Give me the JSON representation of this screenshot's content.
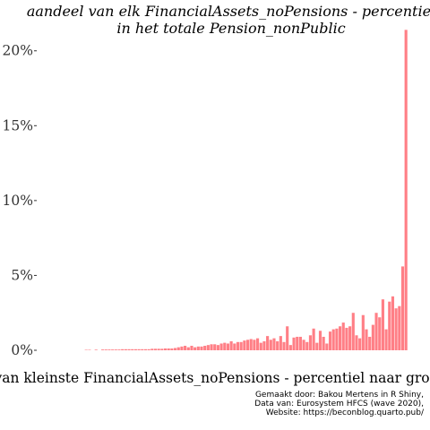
{
  "chart_data": {
    "type": "bar",
    "title_line1": "aandeel van elk FinancialAssets_noPensions - percentiel",
    "title_line2": "in het totale Pension_nonPublic",
    "xlabel": "van kleinste FinancialAssets_noPensions - percentiel naar grootste",
    "ylabel": "",
    "y_ticks": [
      {
        "value": 0,
        "label": "0%"
      },
      {
        "value": 5,
        "label": "5%"
      },
      {
        "value": 10,
        "label": "10%"
      },
      {
        "value": 15,
        "label": "15%"
      },
      {
        "value": 20,
        "label": "20%"
      }
    ],
    "ylim": [
      0,
      21.6
    ],
    "grid": false,
    "bar_color": "#ff7f86",
    "x": [
      1,
      2,
      3,
      4,
      5,
      6,
      7,
      8,
      9,
      10,
      11,
      12,
      13,
      14,
      15,
      16,
      17,
      18,
      19,
      20,
      21,
      22,
      23,
      24,
      25,
      26,
      27,
      28,
      29,
      30,
      31,
      32,
      33,
      34,
      35,
      36,
      37,
      38,
      39,
      40,
      41,
      42,
      43,
      44,
      45,
      46,
      47,
      48,
      49,
      50,
      51,
      52,
      53,
      54,
      55,
      56,
      57,
      58,
      59,
      60,
      61,
      62,
      63,
      64,
      65,
      66,
      67,
      68,
      69,
      70,
      71,
      72,
      73,
      74,
      75,
      76,
      77,
      78,
      79,
      80,
      81,
      82,
      83,
      84,
      85,
      86,
      87,
      88,
      89,
      90,
      91,
      92,
      93,
      94,
      95,
      96,
      97,
      98,
      99,
      100
    ],
    "values": [
      0,
      0,
      0.03,
      0.03,
      0,
      0.04,
      0,
      0.05,
      0.05,
      0.05,
      0.05,
      0.05,
      0.05,
      0.07,
      0.07,
      0.07,
      0.07,
      0.07,
      0.07,
      0.07,
      0.07,
      0.07,
      0.1,
      0.1,
      0.1,
      0.1,
      0.12,
      0.12,
      0.12,
      0.15,
      0.2,
      0.25,
      0.3,
      0.2,
      0.3,
      0.2,
      0.25,
      0.25,
      0.3,
      0.35,
      0.4,
      0.4,
      0.35,
      0.45,
      0.5,
      0.45,
      0.6,
      0.45,
      0.55,
      0.55,
      0.65,
      0.7,
      0.75,
      0.7,
      0.8,
      0.5,
      0.6,
      0.95,
      0.7,
      0.8,
      0.6,
      0.95,
      0.55,
      1.6,
      0.35,
      0.85,
      0.9,
      0.9,
      0.7,
      0.55,
      1.0,
      1.45,
      0.5,
      1.3,
      0.9,
      0.45,
      1.25,
      1.4,
      1.45,
      1.6,
      1.85,
      1.5,
      1.6,
      2.5,
      1.0,
      0.8,
      2.35,
      1.4,
      0.9,
      1.7,
      2.5,
      2.2,
      3.4,
      1.4,
      3.25,
      3.6,
      2.8,
      2.95,
      5.6,
      21.4
    ]
  },
  "caption": {
    "line1": "Gemaakt door: Bakou Mertens in R Shiny,",
    "line2": "Data van: Eurosystem HFCS (wave 2020),",
    "line3": "Website: https://beconblog.quarto.pub/"
  }
}
